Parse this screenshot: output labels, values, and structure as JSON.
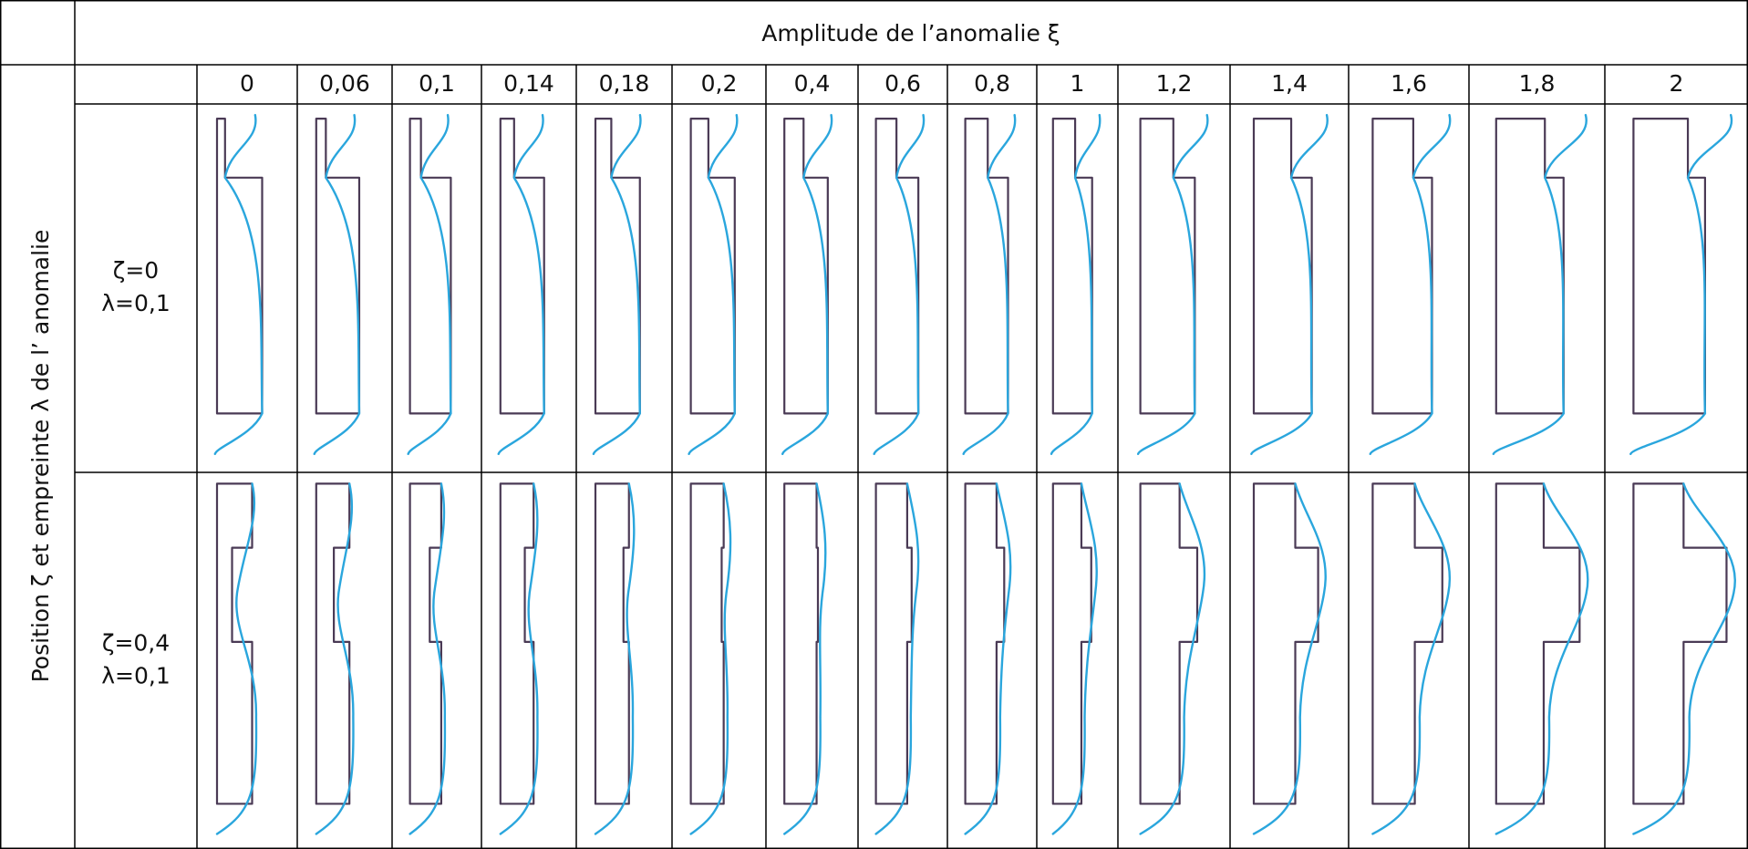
{
  "table": {
    "title": "Amplitude de l’anomalie ξ",
    "row_axis_label": "Position ζ et empreinte λ de l’   anomalie",
    "columns": [
      "0",
      "0,06",
      "0,1",
      "0,14",
      "0,18",
      "0,2",
      "0,4",
      "0,6",
      "0,8",
      "1",
      "1,2",
      "1,4",
      "1,6",
      "1,8",
      "2"
    ],
    "rows": [
      {
        "label": [
          "ζ=0",
          "λ=0,1"
        ]
      },
      {
        "label": [
          "ζ=0,4",
          "λ=0,1"
        ]
      }
    ]
  }
}
